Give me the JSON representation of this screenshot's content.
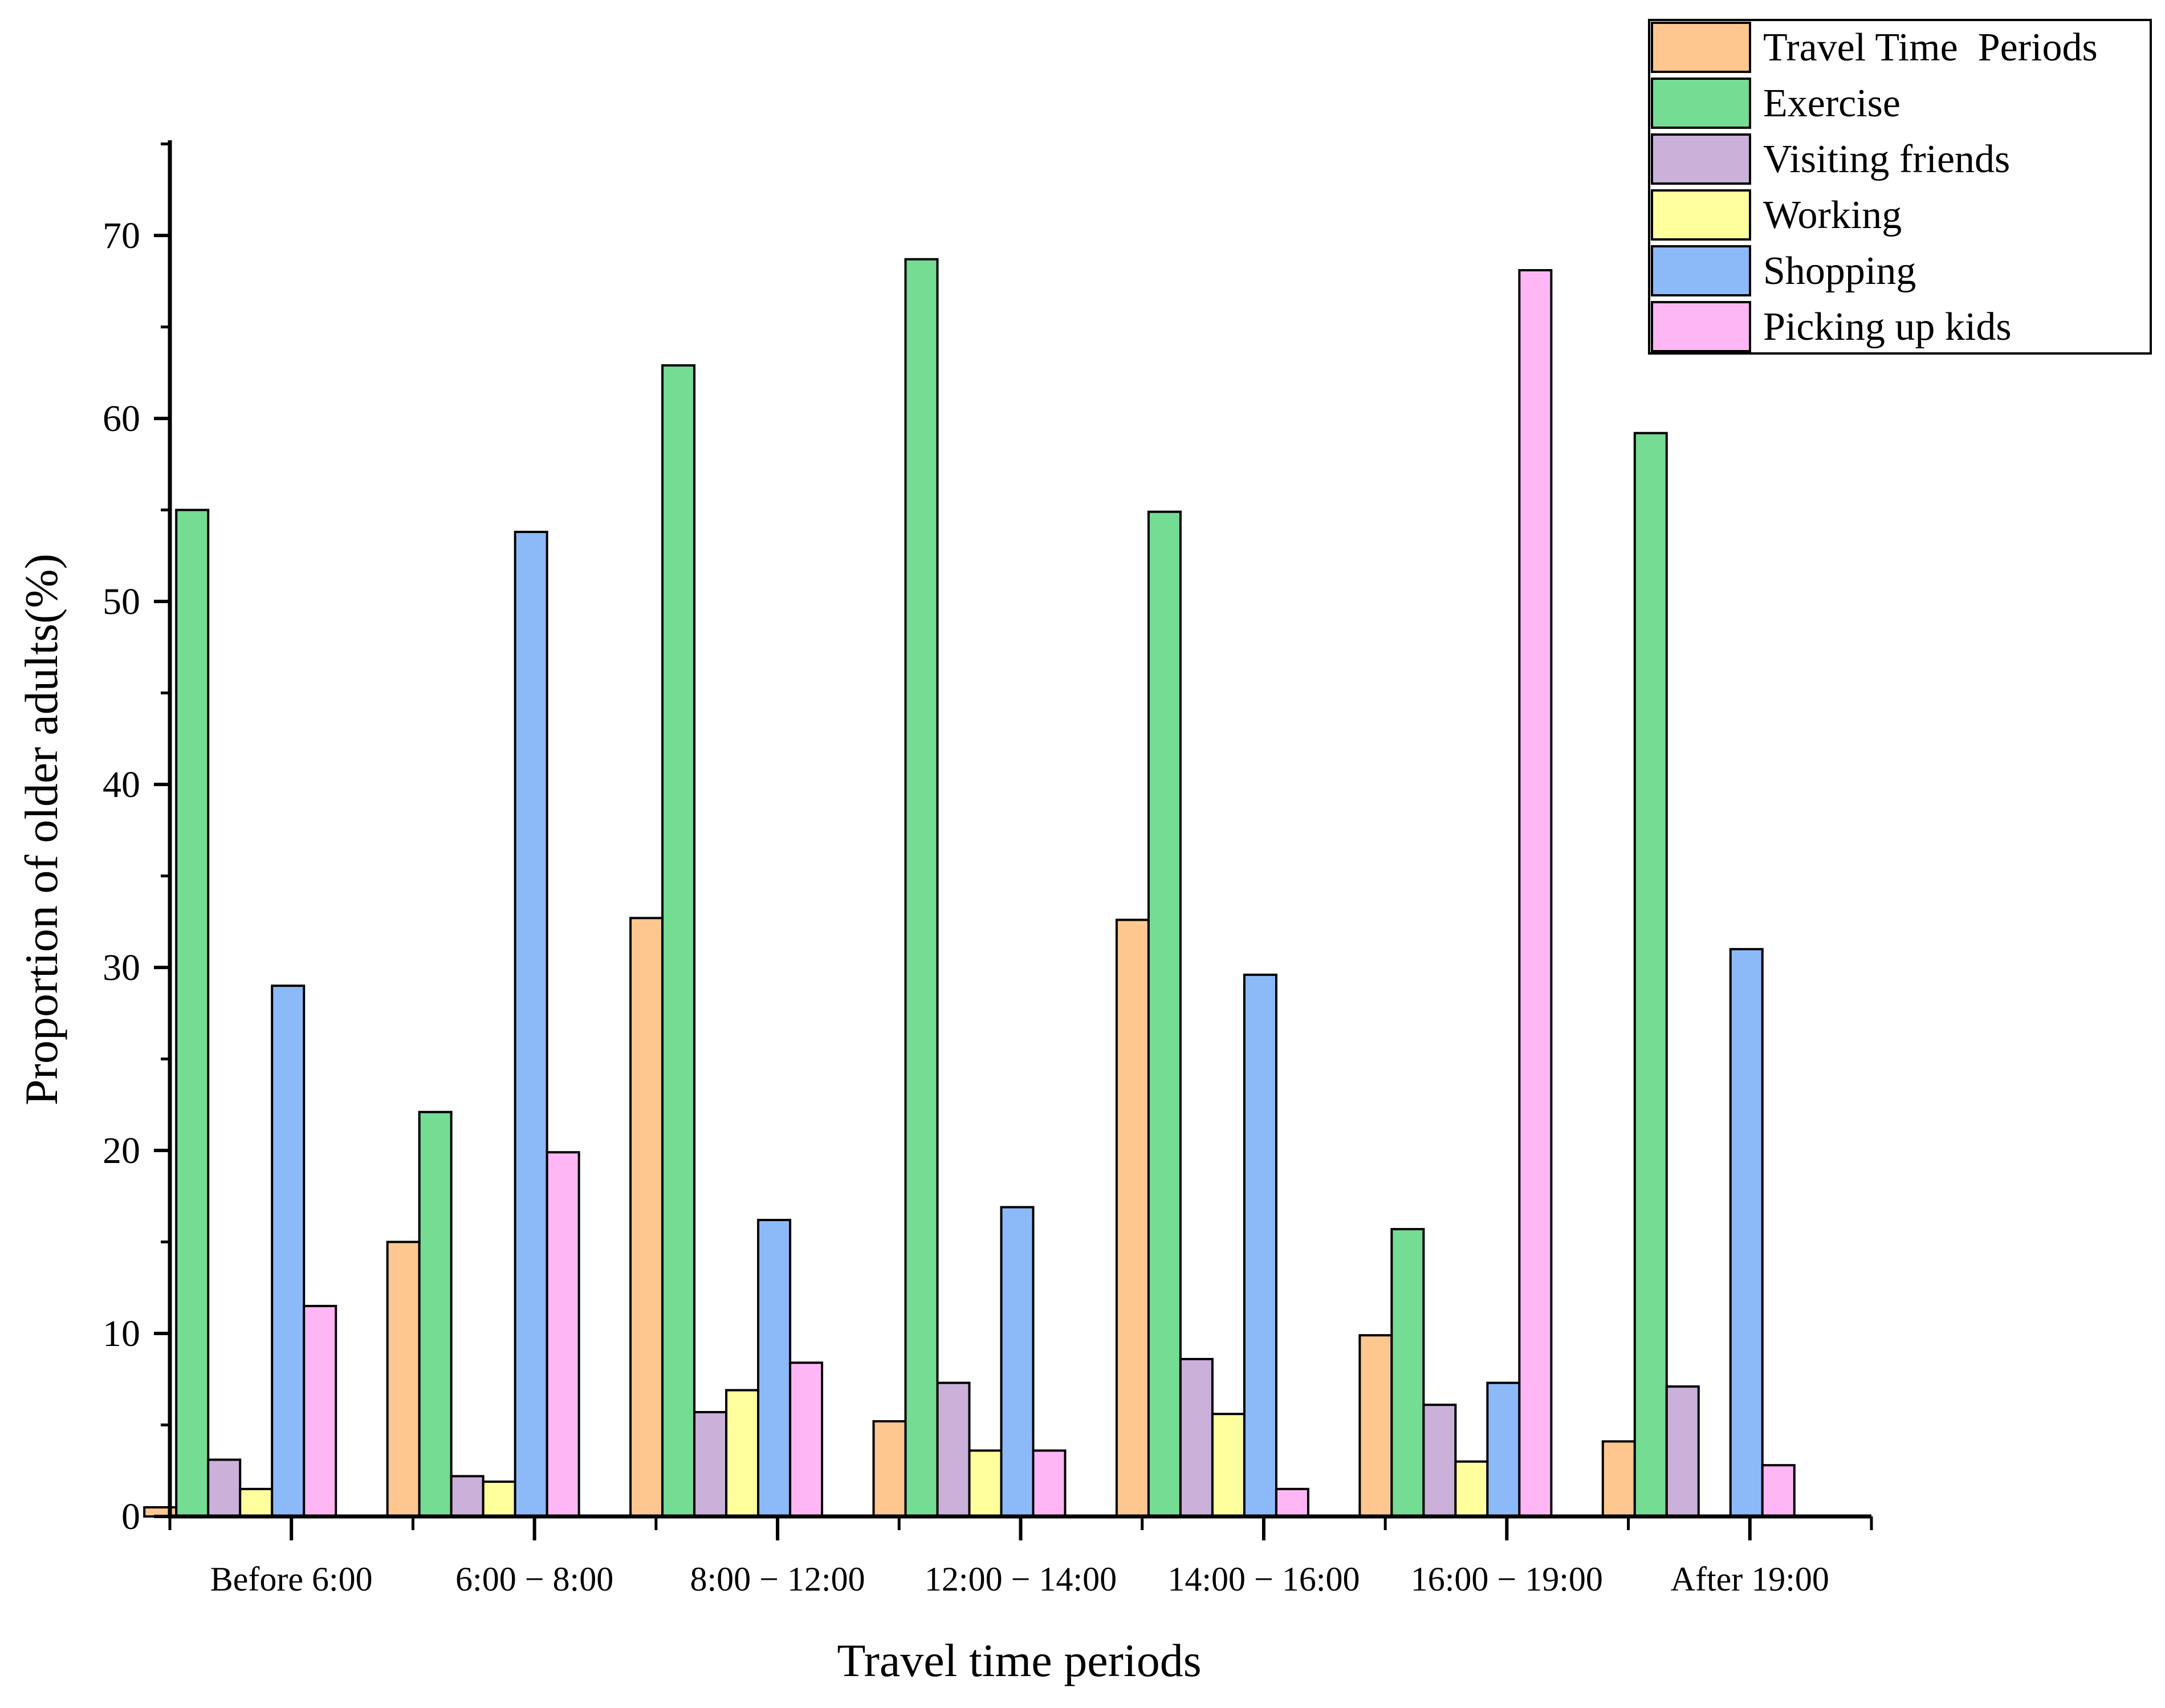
{
  "chart_data": {
    "type": "bar",
    "xlabel": "Travel time periods",
    "ylabel": "Proportion of older adults(%)",
    "ylim": [
      0,
      75
    ],
    "yticks": [
      0,
      10,
      20,
      30,
      40,
      50,
      60,
      70
    ],
    "ytick_labels": [
      "0",
      "10",
      "20",
      "30",
      "40",
      "50",
      "60",
      "70"
    ],
    "grid": false,
    "legend_position": "top-right",
    "categories": [
      "Before 6:00",
      "6:00 − 8:00",
      "8:00 − 12:00",
      "12:00 − 14:00",
      "14:00 − 16:00",
      "16:00 − 19:00",
      "After 19:00"
    ],
    "series": [
      {
        "name": "Travel Time  Periods",
        "color": "#FDC78F",
        "values": [
          0.5,
          15.0,
          32.7,
          5.2,
          32.6,
          9.9,
          4.1
        ]
      },
      {
        "name": "Exercise",
        "color": "#74DC93",
        "values": [
          55.0,
          22.1,
          62.9,
          68.7,
          54.9,
          15.7,
          59.2
        ]
      },
      {
        "name": "Visiting friends",
        "color": "#CBB0DA",
        "values": [
          3.1,
          2.2,
          5.7,
          7.3,
          8.6,
          6.1,
          7.1
        ]
      },
      {
        "name": "Working",
        "color": "#FFFF9D",
        "values": [
          1.5,
          1.9,
          6.9,
          3.6,
          5.6,
          3.0,
          0
        ]
      },
      {
        "name": "Shopping",
        "color": "#8CBAF9",
        "values": [
          29.0,
          53.8,
          16.2,
          16.9,
          29.6,
          7.3,
          31.0
        ]
      },
      {
        "name": "Picking up kids",
        "color": "#FFB6F5",
        "values": [
          11.5,
          19.9,
          8.4,
          3.6,
          1.5,
          68.1,
          2.8
        ]
      }
    ]
  }
}
